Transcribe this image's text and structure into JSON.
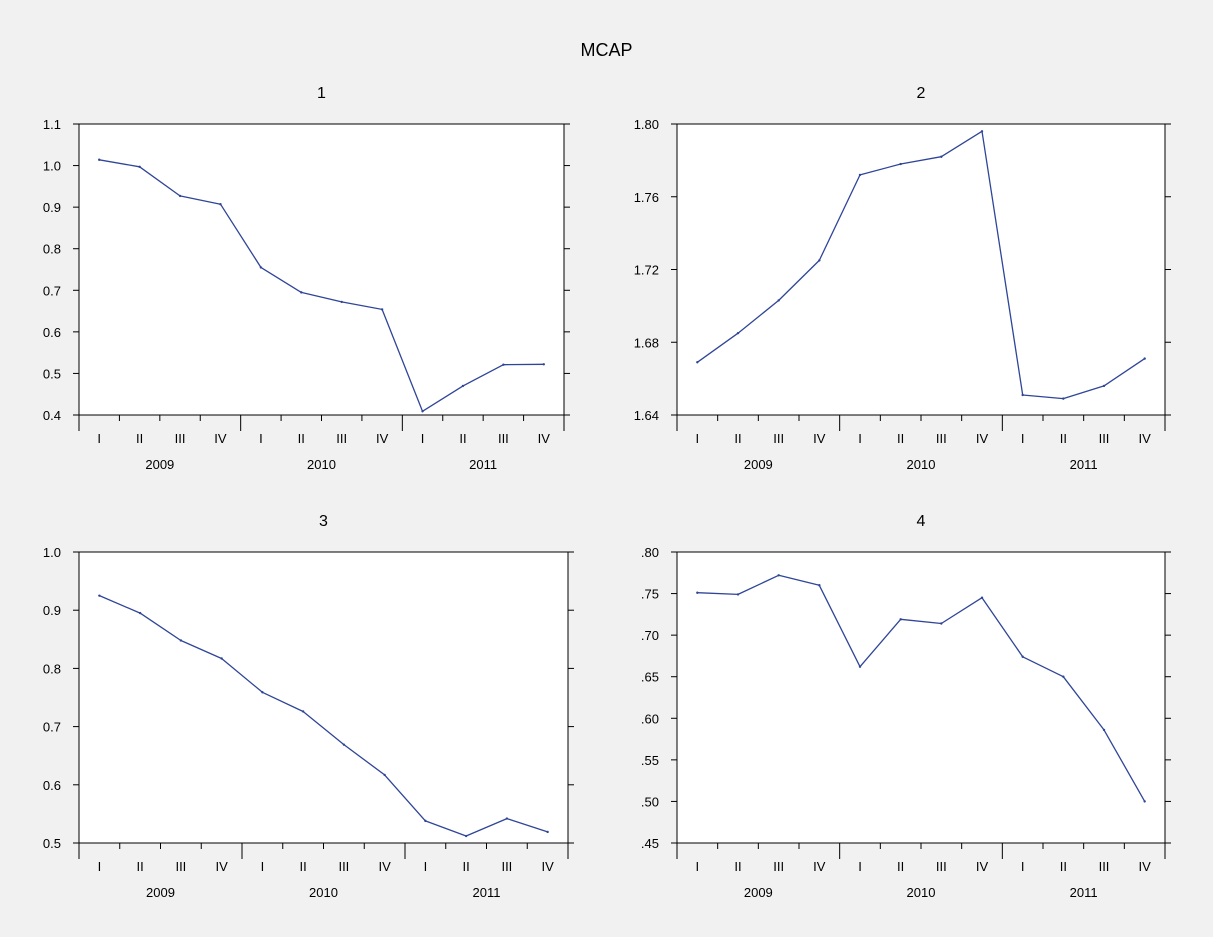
{
  "title": "MCAP",
  "chart_data": [
    {
      "type": "line",
      "title": "1",
      "quarters": [
        "I",
        "II",
        "III",
        "IV",
        "I",
        "II",
        "III",
        "IV",
        "I",
        "II",
        "III",
        "IV"
      ],
      "years": [
        "2009",
        "2010",
        "2011"
      ],
      "ylim": [
        0.4,
        1.1
      ],
      "yticks": [
        0.4,
        0.5,
        0.6,
        0.7,
        0.8,
        0.9,
        1.0,
        1.1
      ],
      "ytick_labels": [
        "0.4",
        "0.5",
        "0.6",
        "0.7",
        "0.8",
        "0.9",
        "1.0",
        "1.1"
      ],
      "values": [
        1.014,
        0.997,
        0.927,
        0.907,
        0.755,
        0.695,
        0.672,
        0.654,
        0.409,
        0.47,
        0.521,
        0.522
      ],
      "line_color": "#2f4598"
    },
    {
      "type": "line",
      "title": "2",
      "quarters": [
        "I",
        "II",
        "III",
        "IV",
        "I",
        "II",
        "III",
        "IV",
        "I",
        "II",
        "III",
        "IV"
      ],
      "years": [
        "2009",
        "2010",
        "2011"
      ],
      "ylim": [
        1.64,
        1.8
      ],
      "yticks": [
        1.64,
        1.68,
        1.72,
        1.76,
        1.8
      ],
      "ytick_labels": [
        "1.64",
        "1.68",
        "1.72",
        "1.76",
        "1.80"
      ],
      "values": [
        1.669,
        1.685,
        1.703,
        1.725,
        1.772,
        1.778,
        1.782,
        1.796,
        1.651,
        1.649,
        1.656,
        1.671
      ],
      "line_color": "#2f4598"
    },
    {
      "type": "line",
      "title": "3",
      "quarters": [
        "I",
        "II",
        "III",
        "IV",
        "I",
        "II",
        "III",
        "IV",
        "I",
        "II",
        "III",
        "IV"
      ],
      "years": [
        "2009",
        "2010",
        "2011"
      ],
      "ylim": [
        0.5,
        1.0
      ],
      "yticks": [
        0.5,
        0.6,
        0.7,
        0.8,
        0.9,
        1.0
      ],
      "ytick_labels": [
        "0.5",
        "0.6",
        "0.7",
        "0.8",
        "0.9",
        "1.0"
      ],
      "values": [
        0.925,
        0.895,
        0.848,
        0.817,
        0.759,
        0.726,
        0.669,
        0.617,
        0.538,
        0.512,
        0.542,
        0.519
      ],
      "line_color": "#2f4598"
    },
    {
      "type": "line",
      "title": "4",
      "quarters": [
        "I",
        "II",
        "III",
        "IV",
        "I",
        "II",
        "III",
        "IV",
        "I",
        "II",
        "III",
        "IV"
      ],
      "years": [
        "2009",
        "2010",
        "2011"
      ],
      "ylim": [
        0.45,
        0.8
      ],
      "yticks": [
        0.45,
        0.5,
        0.55,
        0.6,
        0.65,
        0.7,
        0.75,
        0.8
      ],
      "ytick_labels": [
        ".45",
        ".50",
        ".55",
        ".60",
        ".65",
        ".70",
        ".75",
        ".80"
      ],
      "values": [
        0.751,
        0.749,
        0.772,
        0.76,
        0.662,
        0.719,
        0.714,
        0.745,
        0.674,
        0.65,
        0.586,
        0.5
      ],
      "line_color": "#2f4598"
    }
  ]
}
